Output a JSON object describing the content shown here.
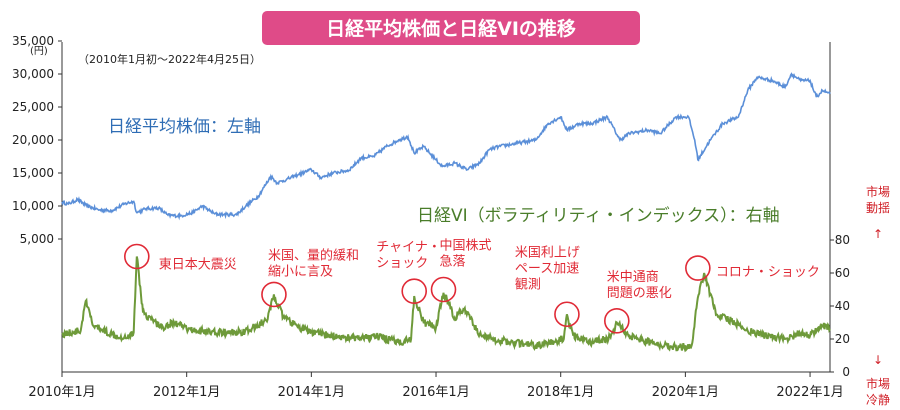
{
  "chart_data": {
    "type": "line",
    "title": "日経平均株価と日経VIの推移",
    "subtitle": "（2010年1月初～2022年4月25日）",
    "left_axis": {
      "unit": "(円)",
      "ticks": [
        "35,000",
        "30,000",
        "25,000",
        "20,000",
        "15,000",
        "10,000",
        "5,000"
      ],
      "tick_values": [
        35000,
        30000,
        25000,
        20000,
        15000,
        10000,
        5000
      ]
    },
    "right_axis": {
      "ticks": [
        "80",
        "60",
        "40",
        "20",
        "0"
      ],
      "tick_values": [
        80,
        60,
        40,
        20,
        0
      ],
      "top_label": [
        "市場",
        "動揺",
        "↑"
      ],
      "bottom_label": [
        "↓",
        "市場",
        "冷静"
      ]
    },
    "x_ticks": [
      "2010年1月",
      "2012年1月",
      "2014年1月",
      "2016年1月",
      "2018年1月",
      "2020年1月",
      "2022年1月"
    ],
    "x_tick_values": [
      2010.0,
      2012.0,
      2014.0,
      2016.0,
      2018.0,
      2020.0,
      2022.0
    ],
    "x_range": [
      2010.0,
      2022.32
    ],
    "series": [
      {
        "name": "日経平均株価：左軸",
        "axis": "left",
        "color": "#5b8fd8",
        "x": [
          2010.0,
          2010.1,
          2010.25,
          2010.4,
          2010.6,
          2010.8,
          2011.0,
          2011.15,
          2011.2,
          2011.35,
          2011.55,
          2011.7,
          2011.9,
          2012.1,
          2012.25,
          2012.45,
          2012.6,
          2012.8,
          2012.95,
          2013.15,
          2013.35,
          2013.45,
          2013.6,
          2013.8,
          2014.0,
          2014.15,
          2014.35,
          2014.6,
          2014.8,
          2015.0,
          2015.2,
          2015.4,
          2015.55,
          2015.65,
          2015.8,
          2016.0,
          2016.1,
          2016.3,
          2016.5,
          2016.7,
          2016.85,
          2017.0,
          2017.3,
          2017.6,
          2017.8,
          2018.0,
          2018.1,
          2018.3,
          2018.5,
          2018.75,
          2018.95,
          2019.1,
          2019.4,
          2019.6,
          2019.85,
          2020.05,
          2020.15,
          2020.2,
          2020.4,
          2020.6,
          2020.85,
          2021.0,
          2021.15,
          2021.4,
          2021.6,
          2021.7,
          2021.85,
          2022.0,
          2022.1,
          2022.2,
          2022.32
        ],
        "y": [
          10600,
          10300,
          11000,
          10000,
          9400,
          9300,
          10300,
          10700,
          9000,
          9600,
          9700,
          8600,
          8500,
          9000,
          10000,
          8800,
          8700,
          8700,
          10000,
          11500,
          14500,
          13500,
          14000,
          14800,
          15500,
          14300,
          15000,
          15400,
          17300,
          17500,
          19000,
          20000,
          20500,
          18000,
          19000,
          17000,
          16000,
          16500,
          15500,
          16500,
          18500,
          19000,
          19500,
          20000,
          22500,
          23500,
          21500,
          22500,
          22500,
          23500,
          20000,
          21000,
          21500,
          21000,
          23500,
          23500,
          20000,
          17000,
          20000,
          22500,
          23500,
          27500,
          29500,
          29000,
          28000,
          30000,
          29000,
          29000,
          26500,
          27500,
          27000
        ]
      },
      {
        "name": "日経VI（ボラティリティ・インデックス）：右軸",
        "axis": "right",
        "color": "#6e9a3a",
        "x": [
          2010.0,
          2010.3,
          2010.38,
          2010.5,
          2010.8,
          2011.0,
          2011.15,
          2011.2,
          2011.3,
          2011.6,
          2011.8,
          2012.0,
          2012.4,
          2012.8,
          2013.0,
          2013.3,
          2013.4,
          2013.55,
          2013.8,
          2014.0,
          2014.3,
          2014.8,
          2015.0,
          2015.4,
          2015.6,
          2015.65,
          2015.8,
          2016.0,
          2016.12,
          2016.3,
          2016.45,
          2016.7,
          2016.9,
          2017.2,
          2017.6,
          2017.9,
          2018.05,
          2018.1,
          2018.2,
          2018.5,
          2018.8,
          2018.9,
          2019.1,
          2019.5,
          2019.9,
          2020.1,
          2020.2,
          2020.3,
          2020.5,
          2020.8,
          2021.0,
          2021.3,
          2021.6,
          2021.9,
          2022.0,
          2022.2,
          2022.32
        ],
        "y": [
          23,
          25,
          43,
          28,
          23,
          21,
          24,
          70,
          36,
          27,
          30,
          26,
          24,
          24,
          25,
          32,
          47,
          33,
          27,
          24,
          22,
          20,
          22,
          18,
          20,
          46,
          30,
          27,
          48,
          33,
          38,
          23,
          20,
          18,
          16,
          18,
          20,
          35,
          22,
          18,
          21,
          30,
          22,
          17,
          15,
          16,
          45,
          60,
          35,
          30,
          25,
          22,
          20,
          24,
          22,
          28,
          26
        ]
      }
    ],
    "series_labels": {
      "nikkei": "日経平均株価：左軸",
      "vi": "日経VI（ボラティリティ・インデックス）：右軸"
    },
    "annotations": [
      {
        "x": 2011.2,
        "y": 70,
        "lines": [
          "東日本大震災"
        ]
      },
      {
        "x": 2013.4,
        "y": 47,
        "lines": [
          "米国、量的緩和",
          "縮小に言及"
        ]
      },
      {
        "x": 2015.65,
        "y": 49,
        "lines": [
          "チャイナ・",
          "ショック"
        ]
      },
      {
        "x": 2016.12,
        "y": 50,
        "lines": [
          "中国株式",
          "急落"
        ]
      },
      {
        "x": 2018.1,
        "y": 35,
        "lines": [
          "米国利上げ",
          "ペース加速",
          "観測"
        ]
      },
      {
        "x": 2018.9,
        "y": 31,
        "lines": [
          "米中通商",
          "問題の悪化"
        ]
      },
      {
        "x": 2020.2,
        "y": 63,
        "lines": [
          "コロナ・ショック"
        ]
      }
    ],
    "grid": false,
    "legend": "inline labels"
  }
}
